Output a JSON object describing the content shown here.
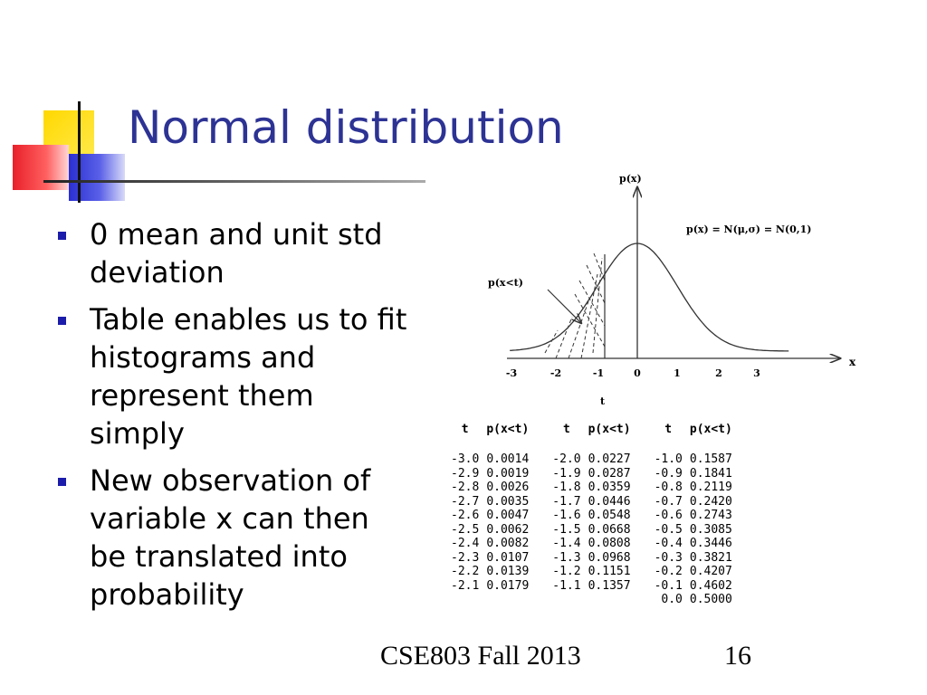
{
  "slide": {
    "title": "Normal distribution",
    "bullets": [
      "0 mean and unit std deviation",
      "Table enables us to fit histograms and represent them simply",
      "New observation of variable x can then be translated into probability"
    ]
  },
  "figure": {
    "y_axis_label": "p(x)",
    "x_axis_label": "x",
    "below_axis_label": "t",
    "formula": "p(x) = N(μ,σ) = N(0,1)",
    "shaded_label": "p(x<t)",
    "ticks": [
      "-3",
      "-2",
      "-1",
      "0",
      "1",
      "2",
      "3"
    ]
  },
  "table": {
    "headers": [
      "t",
      "p(x<t)",
      "t",
      "p(x<t)",
      "t",
      "p(x<t)"
    ],
    "rows": [
      [
        "-3.0",
        "0.0014",
        "-2.0",
        "0.0227",
        "-1.0",
        "0.1587"
      ],
      [
        "-2.9",
        "0.0019",
        "-1.9",
        "0.0287",
        "-0.9",
        "0.1841"
      ],
      [
        "-2.8",
        "0.0026",
        "-1.8",
        "0.0359",
        "-0.8",
        "0.2119"
      ],
      [
        "-2.7",
        "0.0035",
        "-1.7",
        "0.0446",
        "-0.7",
        "0.2420"
      ],
      [
        "-2.6",
        "0.0047",
        "-1.6",
        "0.0548",
        "-0.6",
        "0.2743"
      ],
      [
        "-2.5",
        "0.0062",
        "-1.5",
        "0.0668",
        "-0.5",
        "0.3085"
      ],
      [
        "-2.4",
        "0.0082",
        "-1.4",
        "0.0808",
        "-0.4",
        "0.3446"
      ],
      [
        "-2.3",
        "0.0107",
        "-1.3",
        "0.0968",
        "-0.3",
        "0.3821"
      ],
      [
        "-2.2",
        "0.0139",
        "-1.2",
        "0.1151",
        "-0.2",
        "0.4207"
      ],
      [
        "-2.1",
        "0.0179",
        "-1.1",
        "0.1357",
        "-0.1",
        "0.4602"
      ],
      [
        "",
        "",
        "",
        "",
        "0.0",
        "0.5000"
      ]
    ]
  },
  "footer": {
    "course": "CSE803 Fall 2013",
    "page": "16"
  }
}
